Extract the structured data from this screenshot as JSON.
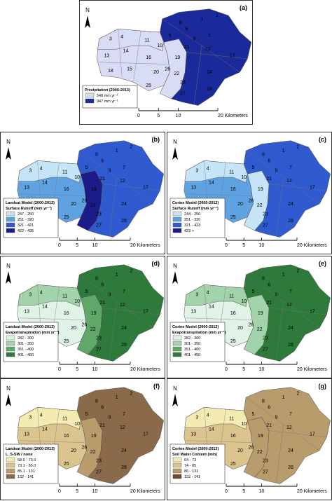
{
  "north": "N",
  "scale_bar": [
    "0",
    "5",
    "10",
    "20 Kilometers"
  ],
  "subbasins": [
    "1",
    "2",
    "3",
    "4",
    "5",
    "6",
    "7",
    "8",
    "9",
    "10",
    "11",
    "12",
    "13",
    "14",
    "15",
    "16",
    "17",
    "18",
    "19",
    "20",
    "21",
    "22",
    "23",
    "24",
    "25",
    "26",
    "27",
    "28"
  ],
  "panels": [
    {
      "label": "(a)",
      "legend_title": [
        "Precipitation (2000-2013)"
      ],
      "legend": [
        {
          "label": "548 mm yr⁻¹",
          "color": "#d9dcf5"
        },
        {
          "label": "947 mm yr⁻¹",
          "color": "#1a2a9a"
        }
      ]
    },
    {
      "label": "(b)",
      "legend_title": [
        "Landsat Model (2000-2013)",
        "Surface Runoff (mm yr⁻¹)"
      ],
      "legend": [
        {
          "label": "247 - 250",
          "color": "#c6e4f7"
        },
        {
          "label": "251 - 320",
          "color": "#5ea2e2"
        },
        {
          "label": "321 - 421",
          "color": "#2f5ad0"
        },
        {
          "label": "422 - 435",
          "color": "#1c1c88"
        }
      ]
    },
    {
      "label": "(c)",
      "legend_title": [
        "Corine Model (2000-2013)",
        "Surface Runoff (mm yr⁻¹)"
      ],
      "legend": [
        {
          "label": "244 - 250",
          "color": "#c6e4f7"
        },
        {
          "label": "251 - 320",
          "color": "#5ea2e2"
        },
        {
          "label": "321 - 423",
          "color": "#2f5ad0"
        },
        {
          "label": "423 >",
          "color": "#1c1c88"
        }
      ]
    },
    {
      "label": "(d)",
      "legend_title": [
        "Landsat Model (2000-2013)",
        "Evapotranspiration (mm yr⁻¹)"
      ],
      "legend": [
        {
          "label": "282 - 300",
          "color": "#e0f3e6"
        },
        {
          "label": "301 - 350",
          "color": "#a2d3aa"
        },
        {
          "label": "351 - 400",
          "color": "#5fa86a"
        },
        {
          "label": "401 - 450",
          "color": "#2e7a3a"
        }
      ]
    },
    {
      "label": "(e)",
      "legend_title": [
        "Corine Model (2000-2013)",
        "Evapotranspiration (mm yr⁻¹)"
      ],
      "legend": [
        {
          "label": "282 - 300",
          "color": "#e0f3e6"
        },
        {
          "label": "301 - 350",
          "color": "#a2d3aa"
        },
        {
          "label": "351 - 400",
          "color": "#5fa86a"
        },
        {
          "label": "401 - 450",
          "color": "#2e7a3a"
        }
      ]
    },
    {
      "label": "(f)",
      "legend_title": [
        "Landsat Model (2000-2013)",
        "L_S-SW / none"
      ],
      "legend": [
        {
          "label": "68.0 - 73.0",
          "color": "#f4ebb2"
        },
        {
          "label": "73.1 - 85.0",
          "color": "#dcc48e"
        },
        {
          "label": "85.1 - 131",
          "color": "#b89c6c"
        },
        {
          "label": "132 - 141",
          "color": "#8a6a48"
        }
      ]
    },
    {
      "label": "(g)",
      "legend_title": [
        "Corine Model (2000-2013)",
        "Soil Water Content (mm)"
      ],
      "legend": [
        {
          "label": "64 - 73",
          "color": "#f4ebb2"
        },
        {
          "label": "74 - 85",
          "color": "#dcc48e"
        },
        {
          "label": "86 - 131",
          "color": "#b89c6c"
        },
        {
          "label": "132 - 141",
          "color": "#6e4a2e"
        }
      ]
    }
  ]
}
